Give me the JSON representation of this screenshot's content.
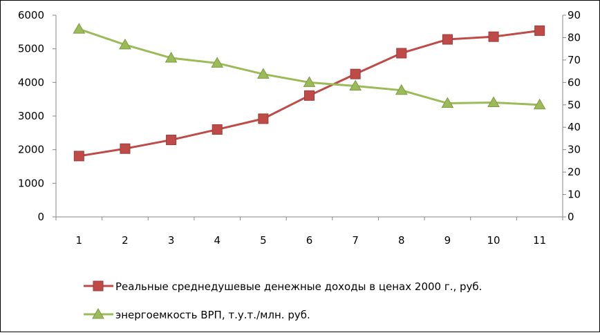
{
  "chart_data": {
    "type": "line",
    "categories": [
      "1",
      "2",
      "3",
      "4",
      "5",
      "6",
      "7",
      "8",
      "9",
      "10",
      "11"
    ],
    "y_left": {
      "ylim": [
        0,
        6000
      ],
      "ticks": [
        "0",
        "1000",
        "2000",
        "3000",
        "4000",
        "5000",
        "6000"
      ]
    },
    "y_right": {
      "ylim": [
        0,
        90
      ],
      "ticks": [
        "0",
        "10",
        "20",
        "30",
        "40",
        "50",
        "60",
        "70",
        "80",
        "90"
      ]
    },
    "series": [
      {
        "name": "Реальные среднедушевые денежные доходы в ценах 2000 г., руб.",
        "axis": "left",
        "color": "#be4b48",
        "marker": "square",
        "values": [
          1810,
          2030,
          2290,
          2600,
          2920,
          3610,
          4250,
          4870,
          5280,
          5360,
          5540
        ]
      },
      {
        "name": "энергоемкость ВРП, т.у.т./млн. руб.",
        "axis": "right",
        "color": "#9bbb59",
        "marker": "triangle",
        "values": [
          83.8,
          76.8,
          70.9,
          68.6,
          63.7,
          60.0,
          58.4,
          56.5,
          50.7,
          51.0,
          50.0
        ]
      }
    ],
    "grid": false,
    "legend_position": "bottom"
  }
}
